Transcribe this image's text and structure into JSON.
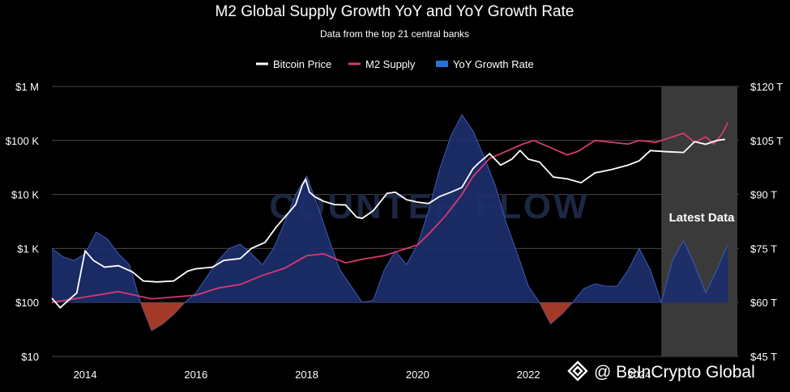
{
  "colors": {
    "background": "#000000",
    "bitcoin": "#ffffff",
    "m2": "#d63a6e",
    "growth_pos": "#1c2e6b",
    "growth_pos_line": "#3f5ab8",
    "growth_neg": "#a33a28",
    "grid": "#4a4a4a",
    "latest_shade": "#3a3a3a"
  },
  "credit": {
    "text": "@ BeInCrypto Global",
    "icon": "beincrypto-logo-icon"
  },
  "chart_data": {
    "type": "line",
    "title": "M2 Global Supply Growth YoY and YoY Growth Rate",
    "subtitle": "Data from the top 21 central banks",
    "legend": {
      "placement": "top-center",
      "entries": [
        "Bitcoin Price",
        "M2 Supply",
        "YoY Growth Rate"
      ]
    },
    "watermark": "COUNTER FLOW",
    "annotation": "Latest Data",
    "highlight_region": [
      2024.4,
      2025.8
    ],
    "x_range": [
      2013.4,
      2025.8
    ],
    "x_ticks": [
      2014,
      2016,
      2018,
      2020,
      2022,
      2024
    ],
    "x_tick_labels": [
      "2014",
      "2016",
      "2018",
      "2020",
      "2022",
      "2024"
    ],
    "y_left": {
      "scale": "log",
      "range": [
        10,
        1000000
      ],
      "ticks": [
        10,
        100,
        1000,
        10000,
        100000,
        1000000
      ],
      "tick_labels": [
        "$10",
        "$100",
        "$1 K",
        "$10 K",
        "$100 K",
        "$1 M"
      ]
    },
    "y_right": {
      "range": [
        45,
        120
      ],
      "ticks": [
        45,
        60,
        75,
        90,
        105,
        120
      ],
      "tick_labels": [
        "$45 T",
        "$60 T",
        "$75 T",
        "$90 T",
        "$105 T",
        "$120 T"
      ]
    },
    "grid": true,
    "series": [
      {
        "name": "Bitcoin Price",
        "axis": "left",
        "x": [
          2013.4,
          2013.55,
          2013.7,
          2013.85,
          2014.0,
          2014.15,
          2014.35,
          2014.6,
          2014.85,
          2015.05,
          2015.3,
          2015.6,
          2015.85,
          2016.0,
          2016.3,
          2016.5,
          2016.8,
          2017.0,
          2017.25,
          2017.45,
          2017.65,
          2017.8,
          2017.92,
          2017.98,
          2018.05,
          2018.15,
          2018.3,
          2018.5,
          2018.7,
          2018.9,
          2019.0,
          2019.2,
          2019.45,
          2019.6,
          2019.8,
          2020.0,
          2020.2,
          2020.4,
          2020.6,
          2020.8,
          2021.0,
          2021.1,
          2021.3,
          2021.5,
          2021.7,
          2021.85,
          2022.0,
          2022.2,
          2022.45,
          2022.7,
          2022.95,
          2023.2,
          2023.5,
          2023.8,
          2024.0,
          2024.2,
          2024.5,
          2024.8,
          2025.0,
          2025.2,
          2025.4,
          2025.55
        ],
        "y": [
          120,
          80,
          110,
          150,
          900,
          600,
          450,
          480,
          370,
          250,
          240,
          250,
          380,
          420,
          450,
          600,
          650,
          1000,
          1300,
          2500,
          4300,
          6500,
          15000,
          19000,
          11000,
          9000,
          7500,
          6500,
          6400,
          3800,
          3600,
          5000,
          10500,
          11000,
          8000,
          7200,
          6800,
          9200,
          11000,
          13500,
          30000,
          38000,
          57000,
          35000,
          45000,
          65000,
          45000,
          40000,
          21000,
          19500,
          16500,
          25000,
          29000,
          35000,
          42000,
          65000,
          62000,
          60000,
          95000,
          85000,
          100000,
          105000
        ]
      },
      {
        "name": "M2 Supply",
        "axis": "right",
        "x": [
          2013.4,
          2013.8,
          2014.2,
          2014.6,
          2014.9,
          2015.2,
          2015.6,
          2016.0,
          2016.4,
          2016.8,
          2017.2,
          2017.6,
          2018.0,
          2018.3,
          2018.7,
          2019.0,
          2019.4,
          2019.8,
          2020.0,
          2020.2,
          2020.5,
          2020.8,
          2021.0,
          2021.3,
          2021.6,
          2021.9,
          2022.1,
          2022.4,
          2022.7,
          2022.9,
          2023.2,
          2023.5,
          2023.8,
          2024.0,
          2024.3,
          2024.6,
          2024.8,
          2025.0,
          2025.2,
          2025.35,
          2025.5,
          2025.6
        ],
        "y": [
          60,
          61,
          62,
          63,
          62,
          61,
          61.5,
          62,
          64,
          65,
          67.5,
          69.5,
          73,
          73.5,
          71,
          72,
          73,
          75,
          76,
          79,
          84,
          90,
          95,
          100,
          102,
          104,
          105,
          103,
          101,
          102,
          105,
          104.5,
          104,
          105,
          104.5,
          106,
          107,
          104.5,
          106,
          104,
          107,
          110
        ]
      },
      {
        "name": "YoY Growth Rate",
        "axis": "left",
        "baseline": 100,
        "x": [
          2013.4,
          2013.6,
          2013.8,
          2014.0,
          2014.2,
          2014.4,
          2014.6,
          2014.8,
          2015.0,
          2015.2,
          2015.4,
          2015.6,
          2015.8,
          2016.0,
          2016.2,
          2016.4,
          2016.6,
          2016.8,
          2017.0,
          2017.2,
          2017.4,
          2017.6,
          2017.8,
          2018.0,
          2018.2,
          2018.4,
          2018.6,
          2018.8,
          2019.0,
          2019.2,
          2019.4,
          2019.6,
          2019.8,
          2020.0,
          2020.2,
          2020.4,
          2020.6,
          2020.8,
          2021.0,
          2021.2,
          2021.4,
          2021.6,
          2021.8,
          2022.0,
          2022.2,
          2022.4,
          2022.6,
          2022.8,
          2023.0,
          2023.2,
          2023.4,
          2023.6,
          2023.8,
          2024.0,
          2024.2,
          2024.4,
          2024.6,
          2024.8,
          2025.0,
          2025.2,
          2025.4,
          2025.6
        ],
        "y": [
          1000,
          700,
          600,
          800,
          2000,
          1500,
          800,
          500,
          100,
          30,
          40,
          60,
          100,
          150,
          300,
          600,
          1000,
          1200,
          800,
          500,
          1000,
          3000,
          10000,
          22000,
          6000,
          1500,
          400,
          200,
          100,
          110,
          400,
          900,
          500,
          1200,
          5000,
          30000,
          120000,
          300000,
          150000,
          50000,
          15000,
          3000,
          800,
          200,
          100,
          40,
          60,
          100,
          180,
          220,
          200,
          200,
          400,
          1000,
          400,
          100,
          600,
          1400,
          500,
          150,
          400,
          1200
        ]
      }
    ]
  }
}
